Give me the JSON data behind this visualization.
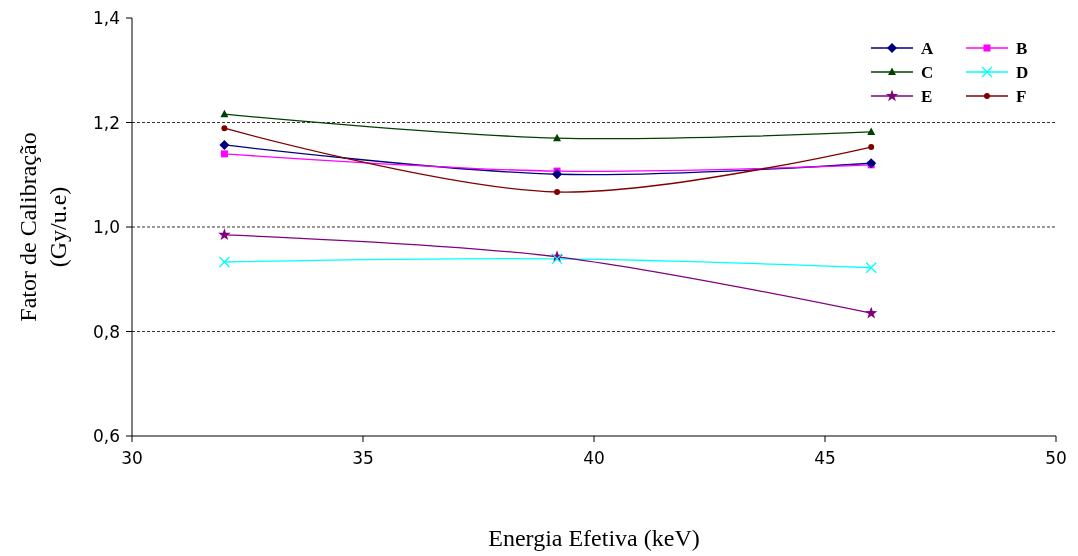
{
  "chart_data": {
    "type": "line",
    "xlabel": "Energia Efetiva (keV)",
    "ylabel": "Fator de Calibração\n(Gy/u.e)",
    "x": [
      32,
      39.2,
      46
    ],
    "xlim": [
      30,
      50
    ],
    "xticks": [
      30,
      35,
      40,
      45,
      50
    ],
    "ylim": [
      0.6,
      1.4
    ],
    "yticks": [
      {
        "value": 0.6,
        "label": "0,6"
      },
      {
        "value": 0.8,
        "label": "0,8"
      },
      {
        "value": 1.0,
        "label": "1,0"
      },
      {
        "value": 1.2,
        "label": "1,2"
      },
      {
        "value": 1.4,
        "label": "1,4"
      }
    ],
    "grid": "y",
    "legend": "top right",
    "series": [
      {
        "name": "A",
        "color": "#000080",
        "marker": "diamond",
        "values": [
          1.157,
          1.101,
          1.122
        ]
      },
      {
        "name": "B",
        "color": "#ff00ff",
        "marker": "square",
        "values": [
          1.14,
          1.107,
          1.119
        ]
      },
      {
        "name": "C",
        "color": "#004000",
        "marker": "triangle",
        "values": [
          1.216,
          1.17,
          1.182
        ]
      },
      {
        "name": "D",
        "color": "#00ffff",
        "marker": "cross",
        "values": [
          0.933,
          0.939,
          0.922
        ]
      },
      {
        "name": "E",
        "color": "#800080",
        "marker": "star",
        "values": [
          0.985,
          0.943,
          0.835
        ]
      },
      {
        "name": "F",
        "color": "#800000",
        "marker": "circle",
        "values": [
          1.189,
          1.067,
          1.153
        ]
      }
    ]
  }
}
